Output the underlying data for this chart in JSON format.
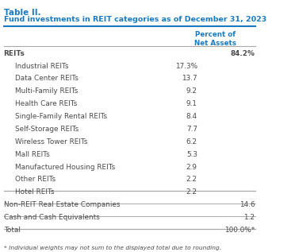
{
  "title_line1": "Table II.",
  "title_line2": "Fund investments in REIT categories as of December 31, 2023",
  "col_header": "Percent of\nNet Assets",
  "rows": [
    {
      "label": "REITs",
      "value": "84.2%",
      "indent": 0,
      "bold": true,
      "value_col": "right"
    },
    {
      "label": "Industrial REITs",
      "value": "17.3%",
      "indent": 1,
      "bold": false,
      "value_col": "mid"
    },
    {
      "label": "Data Center REITs",
      "value": "13.7",
      "indent": 1,
      "bold": false,
      "value_col": "mid"
    },
    {
      "label": "Multi-Family REITs",
      "value": "9.2",
      "indent": 1,
      "bold": false,
      "value_col": "mid"
    },
    {
      "label": "Health Care REITs",
      "value": "9.1",
      "indent": 1,
      "bold": false,
      "value_col": "mid"
    },
    {
      "label": "Single-Family Rental REITs",
      "value": "8.4",
      "indent": 1,
      "bold": false,
      "value_col": "mid"
    },
    {
      "label": "Self-Storage REITs",
      "value": "7.7",
      "indent": 1,
      "bold": false,
      "value_col": "mid"
    },
    {
      "label": "Wireless Tower REITs",
      "value": "6.2",
      "indent": 1,
      "bold": false,
      "value_col": "mid"
    },
    {
      "label": "Mall REITs",
      "value": "5.3",
      "indent": 1,
      "bold": false,
      "value_col": "mid"
    },
    {
      "label": "Manufactured Housing REITs",
      "value": "2.9",
      "indent": 1,
      "bold": false,
      "value_col": "mid"
    },
    {
      "label": "Other REITs",
      "value": "2.2",
      "indent": 1,
      "bold": false,
      "value_col": "mid"
    },
    {
      "label": "Hotel REITs",
      "value": "2.2",
      "indent": 1,
      "bold": false,
      "value_col": "mid"
    },
    {
      "label": "Non-REIT Real Estate Companies",
      "value": "14.6",
      "indent": 0,
      "bold": false,
      "value_col": "right"
    },
    {
      "label": "Cash and Cash Equivalents",
      "value": "1.2",
      "indent": 0,
      "bold": false,
      "value_col": "right"
    },
    {
      "label": "Total",
      "value": "100.0%*",
      "indent": 0,
      "bold": false,
      "value_col": "right"
    }
  ],
  "footnote": "* Individual weights may not sum to the displayed total due to rounding.",
  "title_color": "#1a7abf",
  "header_color": "#1a7abf",
  "text_color": "#4a4a4a",
  "line_color": "#aaaaaa",
  "thick_line_color": "#1a7abf",
  "bg_color": "#ffffff",
  "bold_rows": [
    0
  ],
  "separator_after_rows": [
    11,
    12,
    13,
    14
  ],
  "separator_linewidths": [
    0.9,
    0.7,
    0.7,
    0.9
  ]
}
